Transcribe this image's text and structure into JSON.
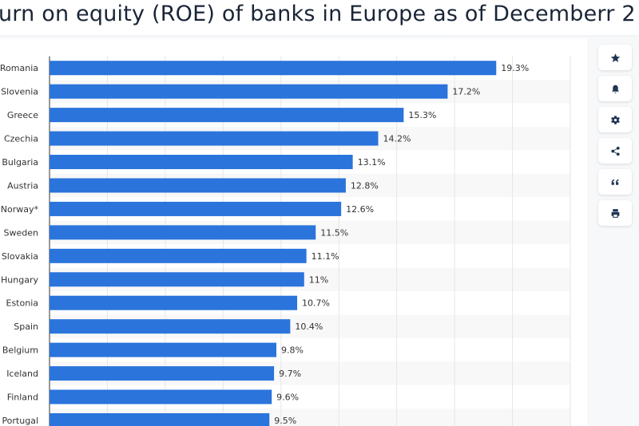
{
  "chart_data": {
    "type": "bar",
    "orientation": "horizontal",
    "title": "urn on equity (ROE) of banks in Europe as of Decemberr 2",
    "categories": [
      "Romania",
      "Slovenia",
      "Greece",
      "Czechia",
      "Bulgaria",
      "Austria",
      "Norway*",
      "Sweden",
      "Slovakia",
      "Hungary",
      "Estonia",
      "Spain",
      "Belgium",
      "Iceland",
      "Finland",
      "Portugal"
    ],
    "values": [
      19.3,
      17.2,
      15.3,
      14.2,
      13.1,
      12.8,
      12.6,
      11.5,
      11.1,
      11,
      10.7,
      10.4,
      9.8,
      9.7,
      9.6,
      9.5
    ],
    "value_labels": [
      "19.3%",
      "17.2%",
      "15.3%",
      "14.2%",
      "13.1%",
      "12.8%",
      "12.6%",
      "11.5%",
      "11.1%",
      "11%",
      "10.7%",
      "10.4%",
      "9.8%",
      "9.7%",
      "9.6%",
      "9.5%"
    ],
    "xlim": [
      0,
      22.5
    ],
    "grid": true,
    "bar_color": "#2a74db",
    "unit": "%"
  },
  "sidebar": {
    "icons": [
      "star-icon",
      "bell-icon",
      "gear-icon",
      "share-icon",
      "quote-icon",
      "print-icon"
    ]
  }
}
